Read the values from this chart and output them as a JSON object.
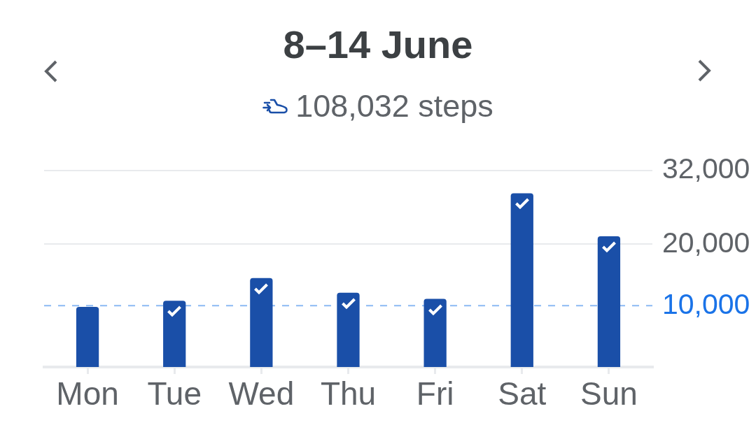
{
  "chart_data": {
    "type": "bar",
    "title": "8–14 June",
    "subtitle": "108,032 steps",
    "categories": [
      "Mon",
      "Tue",
      "Wed",
      "Thu",
      "Fri",
      "Sat",
      "Sun"
    ],
    "values": [
      9800,
      10800,
      14500,
      12100,
      11100,
      28300,
      21300
    ],
    "color": "#1a4fa8",
    "ylim": [
      0,
      32000
    ],
    "yticks": [
      {
        "value": 32000,
        "label": "32,000"
      },
      {
        "value": 20000,
        "label": "20,000"
      }
    ],
    "grid": "y",
    "ref_lines": [
      {
        "axis": "y",
        "value": 10000,
        "label": "10,000",
        "color": "#1a73e8",
        "line_style": "dashed"
      }
    ]
  }
}
